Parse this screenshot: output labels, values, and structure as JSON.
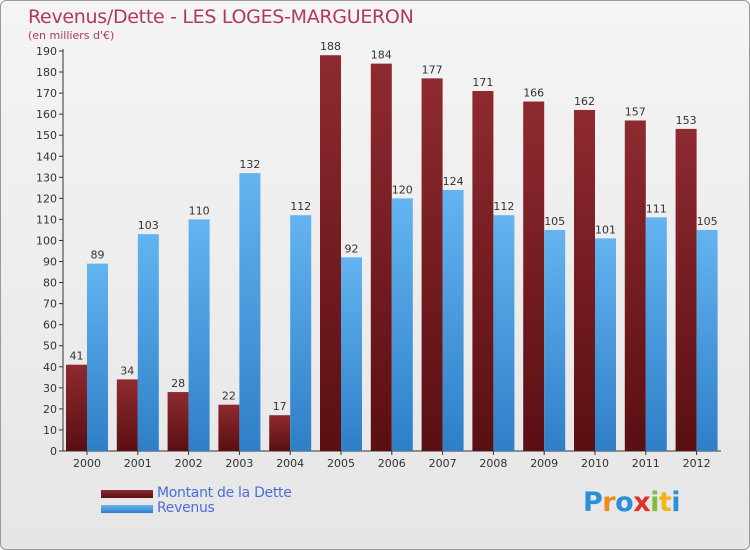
{
  "title": "Revenus/Dette - LES LOGES-MARGUERON",
  "subtitle": "(en milliers d'€)",
  "logo_text": "Proxiti",
  "colors": {
    "dette": "#7a1f23",
    "dette_light": "#9a3035",
    "revenus": "#5aaaea",
    "revenus_dark": "#2f86d0",
    "title": "#b03a5a",
    "legend_text": "#4a6fd8"
  },
  "legend": {
    "dette_label": "Montant de la Dette",
    "revenus_label": "Revenus"
  },
  "chart_data": {
    "type": "bar",
    "title": "Revenus/Dette - LES LOGES-MARGUERON",
    "subtitle": "(en milliers d'€)",
    "categories": [
      "2000",
      "2001",
      "2002",
      "2003",
      "2004",
      "2005",
      "2006",
      "2007",
      "2008",
      "2009",
      "2010",
      "2011",
      "2012"
    ],
    "series": [
      {
        "name": "Montant de la Dette",
        "values": [
          41,
          34,
          28,
          22,
          17,
          188,
          184,
          177,
          171,
          166,
          162,
          157,
          153
        ]
      },
      {
        "name": "Revenus",
        "values": [
          89,
          103,
          110,
          132,
          112,
          92,
          120,
          124,
          112,
          105,
          101,
          111,
          105
        ]
      }
    ],
    "ylim": [
      0,
      190
    ],
    "ytick_step": 10,
    "grid": false,
    "legend_position": "bottom-left"
  }
}
